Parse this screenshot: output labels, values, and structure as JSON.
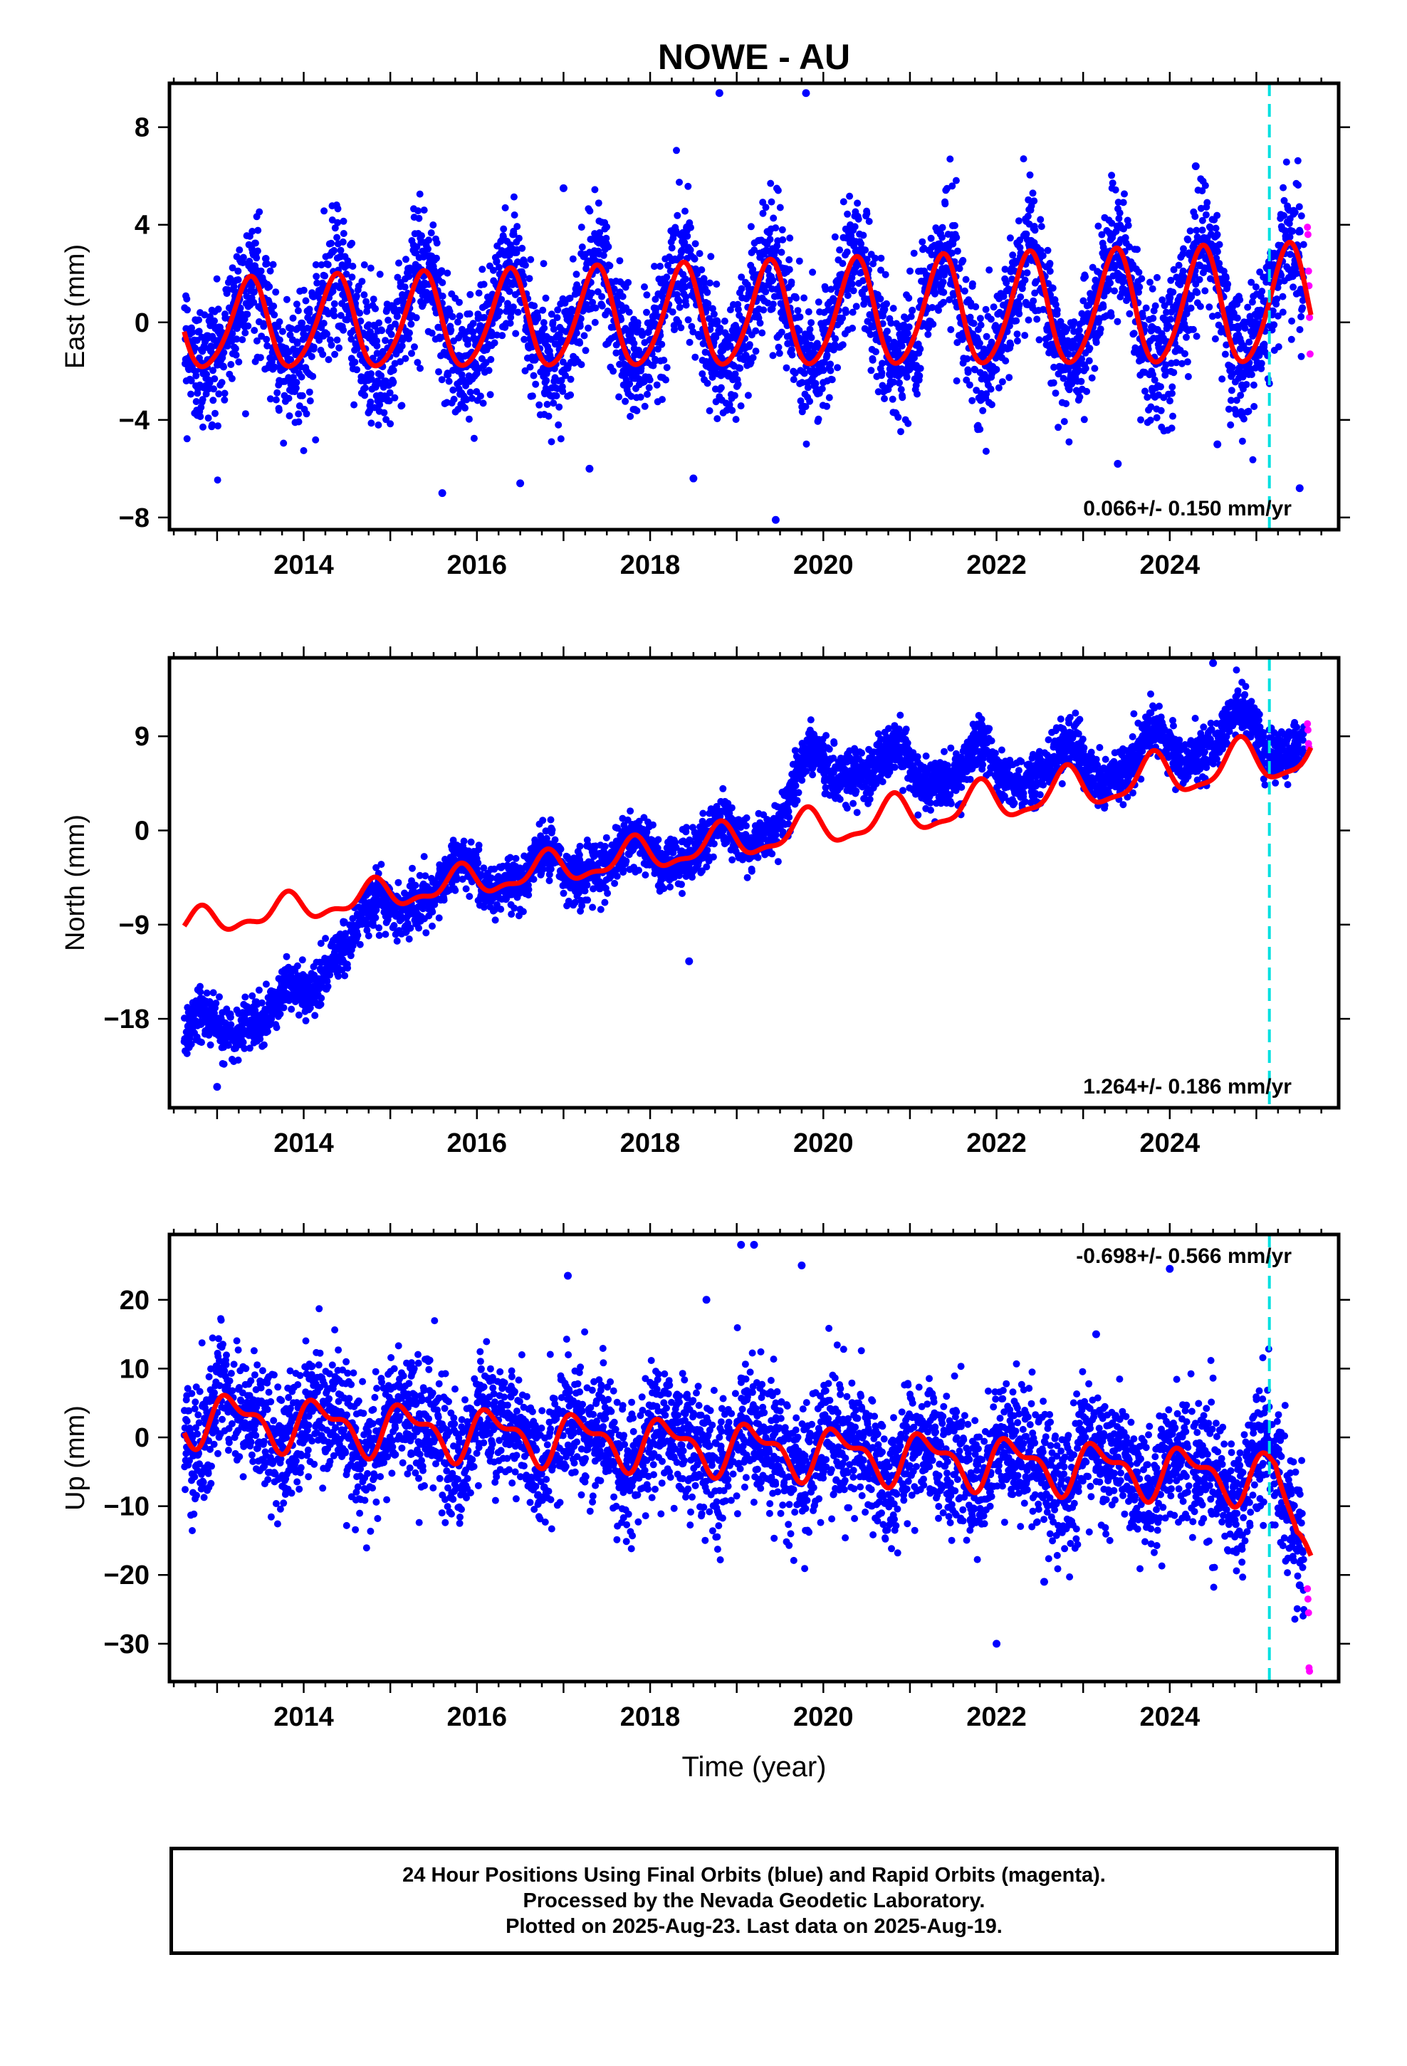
{
  "title": "NOWE - AU",
  "xlabel": "Time (year)",
  "footer": {
    "line1": "24 Hour Positions Using Final Orbits (blue) and Rapid Orbits (magenta).",
    "line2": "Processed by the Nevada Geodetic Laboratory.",
    "line3": "Plotted on 2025-Aug-23. Last data on 2025-Aug-19."
  },
  "colors": {
    "final_orbits": "#0000ff",
    "rapid_orbits": "#ff00ff",
    "model_fit": "#ff0000",
    "marker_line": "#00e0e0"
  },
  "chart_data": [
    {
      "type": "scatter",
      "name": "East",
      "ylabel": "East (mm)",
      "xlim": [
        2012.45,
        2025.95
      ],
      "ylim": [
        -8.5,
        9.8
      ],
      "yticks": [
        -8,
        -4,
        0,
        4,
        8
      ],
      "xticks": [
        2014,
        2016,
        2018,
        2020,
        2022,
        2024
      ],
      "rate_text": "0.066+/- 0.150 mm/yr",
      "rate_position": "bottom-right",
      "marker_year": 2025.15,
      "data_start": 2012.62,
      "final_end": 2025.55,
      "rapid_end": 2025.63,
      "model": {
        "offset": -0.2,
        "trend": 0.066,
        "amp1": 2.1,
        "amp1_change": 0.05,
        "phase1": 0.12,
        "amp2": 0.25,
        "phase2": 0.3,
        "step": 0,
        "step_year": 2099
      },
      "noise_sd": 1.3,
      "cluster_years": [],
      "cluster_offsets": [],
      "rapid_values": [
        3.9,
        3.6,
        2.1,
        1.5,
        0.2,
        -1.3
      ],
      "outliers": [
        [
          2018.8,
          9.4
        ],
        [
          2019.8,
          9.4
        ],
        [
          2019.45,
          -8.1
        ],
        [
          2015.6,
          -7.0
        ],
        [
          2016.5,
          -6.6
        ],
        [
          2017.3,
          -6.0
        ],
        [
          2018.5,
          -6.4
        ],
        [
          2023.4,
          -5.8
        ],
        [
          2024.55,
          -5.0
        ],
        [
          2025.5,
          -6.8
        ],
        [
          2017.0,
          5.5
        ],
        [
          2024.3,
          6.4
        ]
      ]
    },
    {
      "type": "scatter",
      "name": "North",
      "ylabel": "North (mm)",
      "xlim": [
        2012.45,
        2025.95
      ],
      "ylim": [
        -26.5,
        16.5
      ],
      "yticks": [
        -18,
        -9,
        0,
        9
      ],
      "xticks": [
        2014,
        2016,
        2018,
        2020,
        2022,
        2024
      ],
      "rate_text": "1.264+/- 0.186 mm/yr",
      "rate_position": "bottom-right",
      "marker_year": 2025.15,
      "data_start": 2012.62,
      "final_end": 2025.55,
      "rapid_end": 2025.63,
      "model": {
        "offset": -9.3,
        "trend": 1.264,
        "amp1": 1.6,
        "amp1_change": 0.08,
        "phase1": 0.55,
        "amp2": 0.6,
        "phase2": 0.2,
        "step": 0,
        "step_year": 2099
      },
      "noise_sd": 1.2,
      "cluster_years": [
        2012.6,
        2013.2,
        2013.9,
        2014.6,
        2015.6,
        2016.6,
        2017.6,
        2018.6,
        2019.4,
        2019.9,
        2020.6,
        2021.6,
        2022.6,
        2023.6,
        2024.6,
        2025.7
      ],
      "cluster_offsets": [
        -10.5,
        -10.0,
        -9.0,
        -2.5,
        0.5,
        0.0,
        0.2,
        0.0,
        1.0,
        6.5,
        5.0,
        3.5,
        2.5,
        2.0,
        3.0,
        1.5
      ],
      "rapid_values": [
        10.2,
        9.6,
        8.3,
        7.9
      ],
      "outliers": [
        [
          2018.45,
          -12.5
        ],
        [
          2024.5,
          16.0
        ],
        [
          2013.0,
          -24.5
        ]
      ]
    },
    {
      "type": "scatter",
      "name": "Up",
      "ylabel": "Up (mm)",
      "xlim": [
        2012.45,
        2025.95
      ],
      "ylim": [
        -35.5,
        29.5
      ],
      "yticks": [
        -30,
        -20,
        -10,
        0,
        10,
        20
      ],
      "xticks": [
        2014,
        2016,
        2018,
        2020,
        2022,
        2024
      ],
      "rate_text": "-0.698+/- 0.566 mm/yr",
      "rate_position": "top-right",
      "marker_year": 2025.15,
      "data_start": 2012.62,
      "final_end": 2025.55,
      "rapid_end": 2025.63,
      "model": {
        "offset": 3.0,
        "trend": -0.698,
        "amp1": 3.2,
        "amp1_change": 0.0,
        "phase1": 0.95,
        "amp2": 1.6,
        "phase2": 0.9,
        "step": -8.5,
        "step_year": 2025.22
      },
      "noise_sd": 4.6,
      "cluster_years": [],
      "cluster_offsets": [],
      "rapid_values": [
        -22.0,
        -23.5,
        -25.5,
        -33.5,
        -34.0
      ],
      "outliers": [
        [
          2019.05,
          28.0
        ],
        [
          2019.2,
          28.0
        ],
        [
          2019.75,
          25.0
        ],
        [
          2024.0,
          24.5
        ],
        [
          2017.05,
          23.5
        ],
        [
          2022.0,
          -30.0
        ],
        [
          2022.55,
          -21.0
        ],
        [
          2025.5,
          -21.5
        ],
        [
          2023.15,
          15.0
        ],
        [
          2018.65,
          20.0
        ]
      ]
    }
  ]
}
